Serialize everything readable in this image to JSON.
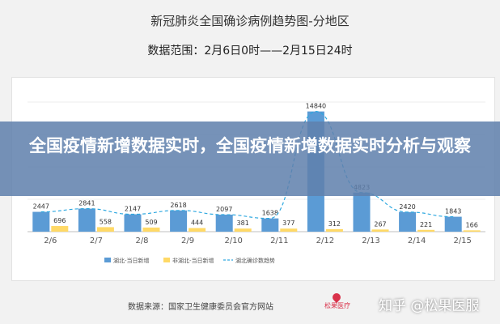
{
  "header": {
    "title": "新冠肺炎全国确诊病例趋势图-分地区",
    "range": "数据范围：2月6日0时——2月15日24时"
  },
  "overlay": {
    "text": "全国疫情新增数据实时，全国疫情新增数据实时分析与观察"
  },
  "footer": {
    "source": "数据来源：国家卫生健康委员会官方网站",
    "logo_text": "松果医疗",
    "watermark": "知乎 @松果医服"
  },
  "colors": {
    "hubei": "#5b9bd5",
    "non_hubei": "#ffd966",
    "trend": "#2ea8e0",
    "label": "#333333",
    "axis": "#bfbfbf"
  },
  "chart_data": {
    "type": "bar",
    "categories": [
      "2/6",
      "2/7",
      "2/8",
      "2/9",
      "2/10",
      "2/11",
      "2/12",
      "2/13",
      "2/14",
      "2/15"
    ],
    "series": [
      {
        "name": "湖北-当日新增",
        "type": "bar",
        "values": [
          2447,
          2841,
          2147,
          2618,
          2097,
          1638,
          14840,
          4823,
          2420,
          1843
        ]
      },
      {
        "name": "非湖北-当日新增",
        "type": "bar",
        "values": [
          696,
          558,
          509,
          444,
          381,
          377,
          312,
          267,
          221,
          166
        ]
      },
      {
        "name": "湖北确诊数趋势",
        "type": "line",
        "style": "dashed",
        "values": [
          2447,
          2841,
          2147,
          2618,
          2097,
          1638,
          14840,
          4823,
          2420,
          1843
        ]
      }
    ],
    "ylim": [
      0,
      16000
    ],
    "grid": true,
    "legend_position": "bottom"
  }
}
